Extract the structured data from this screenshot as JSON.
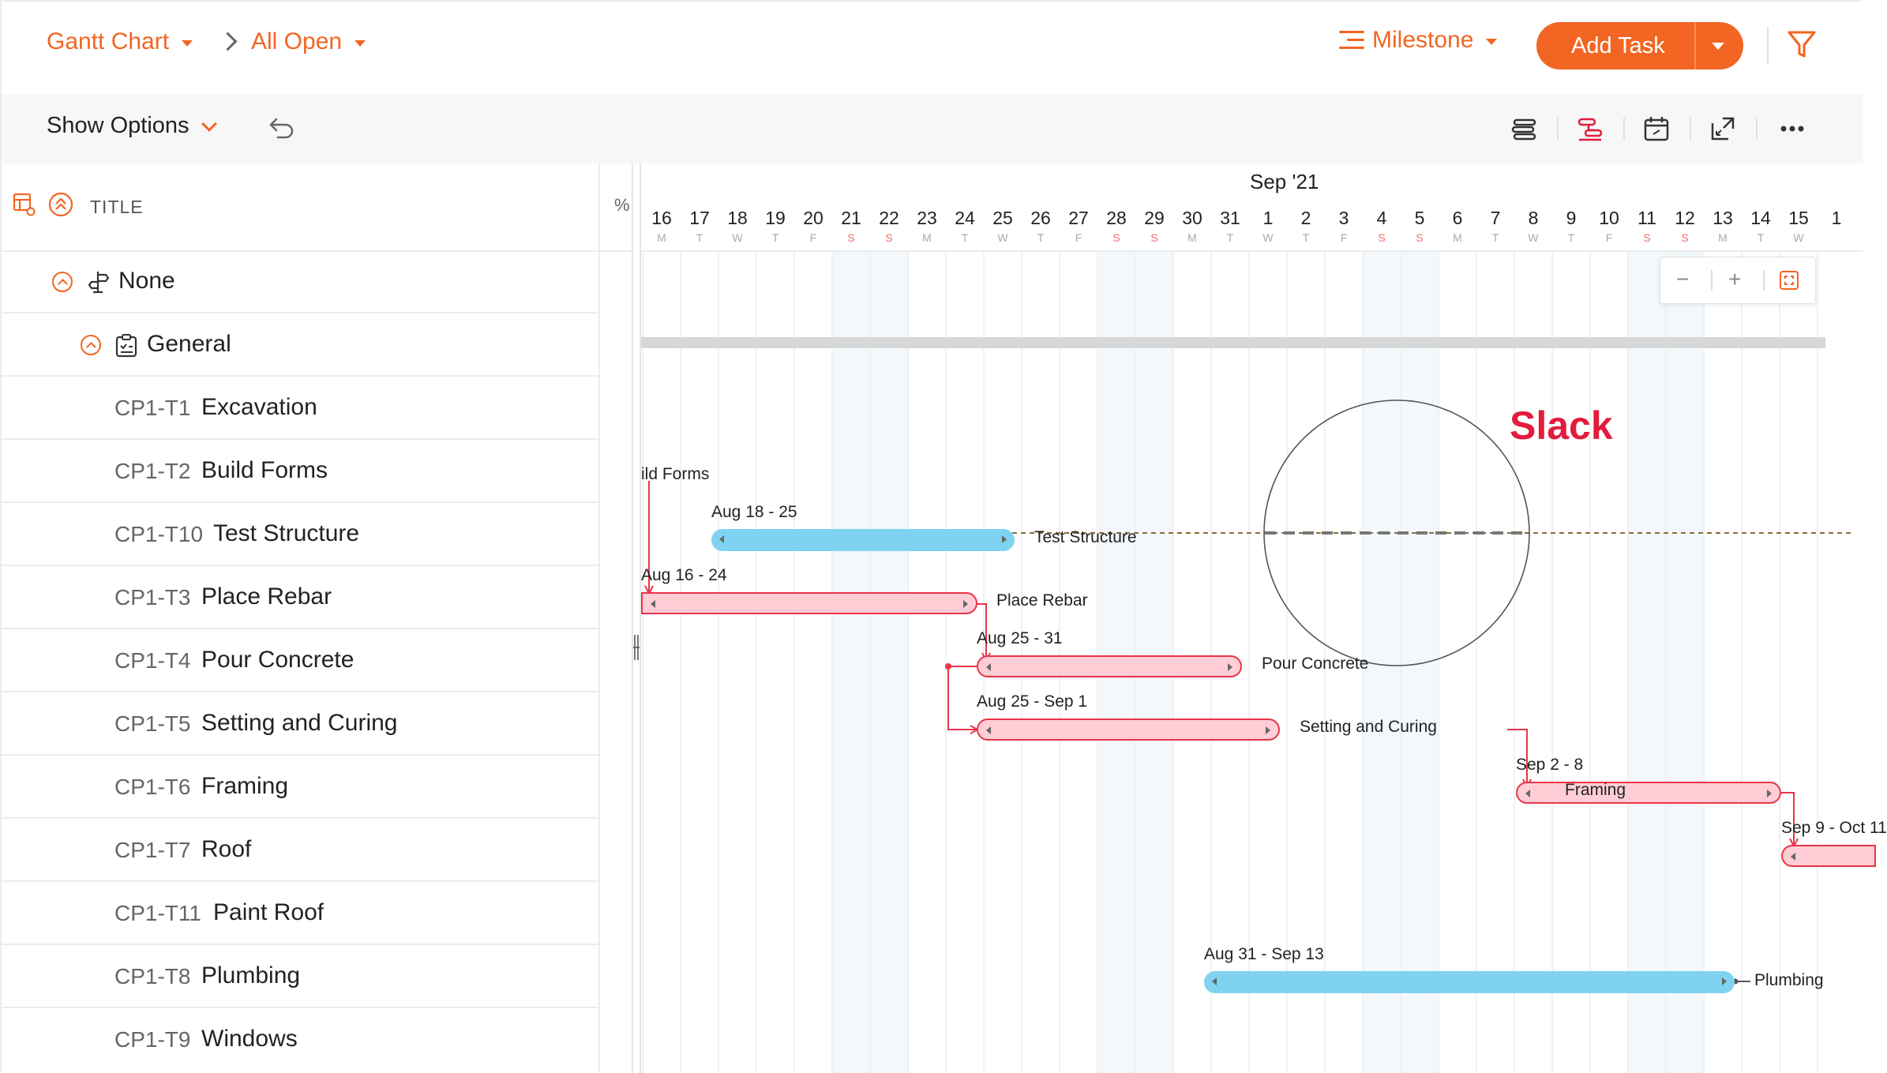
{
  "header": {
    "view_label": "Gantt Chart",
    "filter_label": "All Open",
    "milestone_label": "Milestone",
    "add_task_label": "Add Task"
  },
  "toolbar": {
    "show_options_label": "Show Options"
  },
  "grid": {
    "title_header": "TITLE",
    "percent_header": "%",
    "group_none": "None",
    "group_general": "General",
    "tasks": [
      {
        "code": "CP1-T1",
        "name": "Excavation"
      },
      {
        "code": "CP1-T2",
        "name": "Build Forms"
      },
      {
        "code": "CP1-T10",
        "name": "Test Structure"
      },
      {
        "code": "CP1-T3",
        "name": "Place Rebar"
      },
      {
        "code": "CP1-T4",
        "name": "Pour Concrete"
      },
      {
        "code": "CP1-T5",
        "name": "Setting and Curing"
      },
      {
        "code": "CP1-T6",
        "name": "Framing"
      },
      {
        "code": "CP1-T7",
        "name": "Roof"
      },
      {
        "code": "CP1-T11",
        "name": "Paint Roof"
      },
      {
        "code": "CP1-T8",
        "name": "Plumbing"
      },
      {
        "code": "CP1-T9",
        "name": "Windows"
      }
    ]
  },
  "timeline": {
    "month_label": "Sep '21",
    "days": [
      {
        "n": "16",
        "d": "M"
      },
      {
        "n": "17",
        "d": "T"
      },
      {
        "n": "18",
        "d": "W"
      },
      {
        "n": "19",
        "d": "T"
      },
      {
        "n": "20",
        "d": "F"
      },
      {
        "n": "21",
        "d": "S"
      },
      {
        "n": "22",
        "d": "S"
      },
      {
        "n": "23",
        "d": "M"
      },
      {
        "n": "24",
        "d": "T"
      },
      {
        "n": "25",
        "d": "W"
      },
      {
        "n": "26",
        "d": "T"
      },
      {
        "n": "27",
        "d": "F"
      },
      {
        "n": "28",
        "d": "S"
      },
      {
        "n": "29",
        "d": "S"
      },
      {
        "n": "30",
        "d": "M"
      },
      {
        "n": "31",
        "d": "T"
      },
      {
        "n": "1",
        "d": "W"
      },
      {
        "n": "2",
        "d": "T"
      },
      {
        "n": "3",
        "d": "F"
      },
      {
        "n": "4",
        "d": "S"
      },
      {
        "n": "5",
        "d": "S"
      },
      {
        "n": "6",
        "d": "M"
      },
      {
        "n": "7",
        "d": "T"
      },
      {
        "n": "8",
        "d": "W"
      },
      {
        "n": "9",
        "d": "T"
      },
      {
        "n": "10",
        "d": "F"
      },
      {
        "n": "11",
        "d": "S"
      },
      {
        "n": "12",
        "d": "S"
      },
      {
        "n": "13",
        "d": "M"
      },
      {
        "n": "14",
        "d": "T"
      },
      {
        "n": "15",
        "d": "W"
      },
      {
        "n": "1",
        "d": ""
      }
    ],
    "bars": {
      "build_forms_label": "ild Forms",
      "test_structure_range": "Aug 18 - 25",
      "test_structure_label": "Test Structure",
      "place_rebar_range": "Aug 16 - 24",
      "place_rebar_label": "Place Rebar",
      "pour_concrete_range": "Aug 25 - 31",
      "pour_concrete_label": "Pour Concrete",
      "setting_curing_range": "Aug 25 - Sep 1",
      "setting_curing_label": "Setting and Curing",
      "framing_range": "Sep 2 - 8",
      "framing_label": "Framing",
      "roof_range": "Sep 9 - Oct 11",
      "plumbing_range": "Aug 31 - Sep 13",
      "plumbing_label": "Plumbing"
    },
    "slack_callout": "Slack",
    "zoom": {
      "minus": "−",
      "plus": "+"
    }
  },
  "colors": {
    "accent": "#f26522",
    "critical_fill": "#ffcdd5",
    "critical_border": "#e8354a",
    "normal_bar": "#7fd3f0",
    "slack": "#e31c3d"
  }
}
